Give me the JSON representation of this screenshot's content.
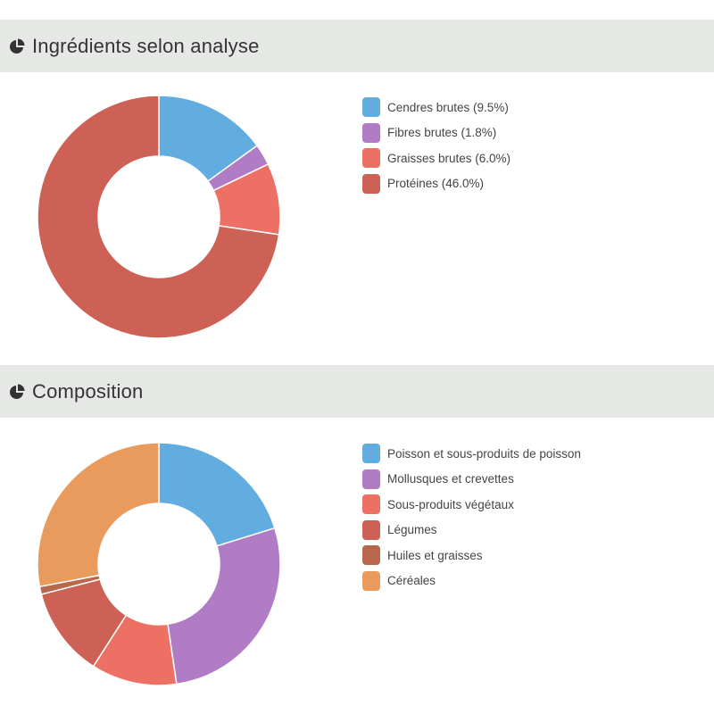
{
  "sections": [
    {
      "id": "analysis",
      "title": "Ingrédients selon analyse",
      "icon": "pie-chart-icon",
      "legend": [
        {
          "label": "Cendres brutes (9.5%)",
          "color": "#62ade0"
        },
        {
          "label": "Fibres brutes (1.8%)",
          "color": "#b07cc6"
        },
        {
          "label": "Graisses brutes (6.0%)",
          "color": "#ec7063"
        },
        {
          "label": "Protéines (46.0%)",
          "color": "#cd6155"
        }
      ]
    },
    {
      "id": "composition",
      "title": "Composition",
      "icon": "pie-chart-icon",
      "legend": [
        {
          "label": "Poisson et sous-produits de poisson",
          "color": "#62ade0"
        },
        {
          "label": "Mollusques et crevettes",
          "color": "#b07cc6"
        },
        {
          "label": "Sous-produits végétaux",
          "color": "#ec7063"
        },
        {
          "label": "Légumes",
          "color": "#cd6155"
        },
        {
          "label": "Huiles et graisses",
          "color": "#b9674a"
        },
        {
          "label": "Céréales",
          "color": "#e89b5c"
        }
      ]
    }
  ],
  "chart_data": [
    {
      "type": "pie",
      "donut": true,
      "title": "Ingrédients selon analyse",
      "legend_position": "right",
      "categories": [
        "Cendres brutes",
        "Fibres brutes",
        "Graisses brutes",
        "Protéines"
      ],
      "values": [
        9.5,
        1.8,
        6.0,
        46.0
      ],
      "colors": [
        "#62ade0",
        "#b07cc6",
        "#ec7063",
        "#cd6155"
      ]
    },
    {
      "type": "pie",
      "donut": true,
      "title": "Composition",
      "legend_position": "right",
      "categories": [
        "Poisson et sous-produits de poisson",
        "Mollusques et crevettes",
        "Sous-produits végétaux",
        "Légumes",
        "Huiles et graisses",
        "Céréales"
      ],
      "values": [
        19.5,
        26.5,
        11,
        11.5,
        1,
        27
      ],
      "colors": [
        "#62ade0",
        "#b07cc6",
        "#ec7063",
        "#cd6155",
        "#b9674a",
        "#e89b5c"
      ]
    }
  ]
}
